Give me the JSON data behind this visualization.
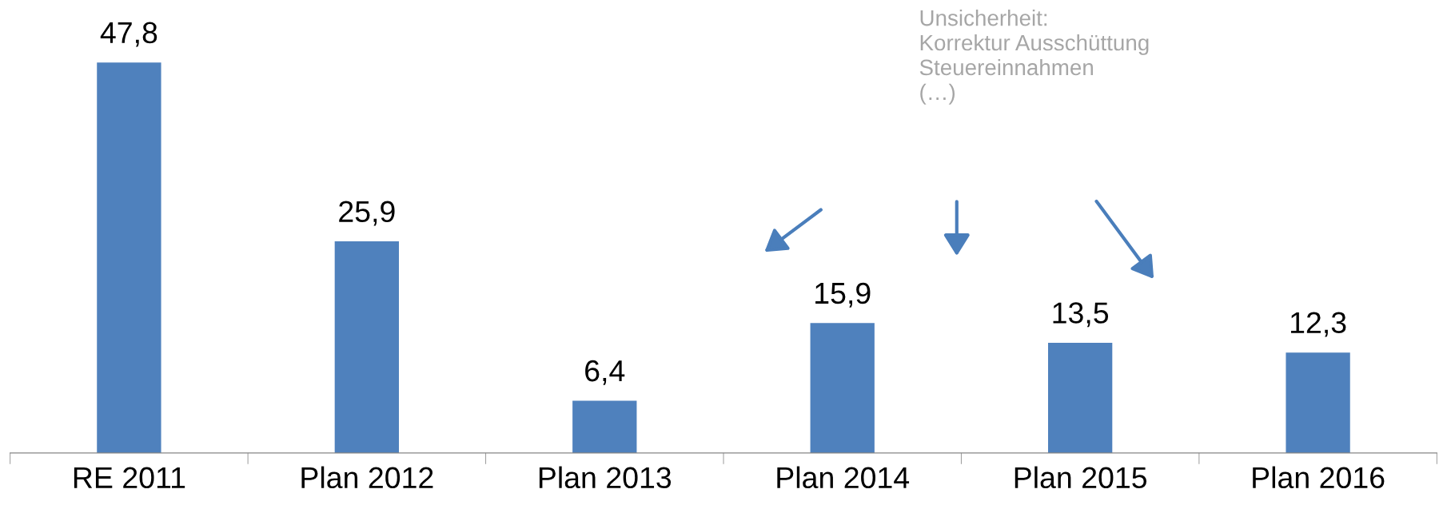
{
  "chart_data": {
    "type": "bar",
    "categories": [
      "RE 2011",
      "Plan 2012",
      "Plan 2013",
      "Plan 2014",
      "Plan 2015",
      "Plan 2016"
    ],
    "values": [
      47.8,
      25.9,
      6.4,
      15.9,
      13.5,
      12.3
    ],
    "value_labels": [
      "47,8",
      "25,9",
      "6,4",
      "15,9",
      "13,5",
      "12,3"
    ],
    "color": "#4f81bd",
    "annotations": [
      "Unsicherheit:\nKorrektur Ausschüttung\nSteuereinnahmen\n(…)"
    ],
    "grid": false,
    "legend": false,
    "tick_labels": "x"
  }
}
